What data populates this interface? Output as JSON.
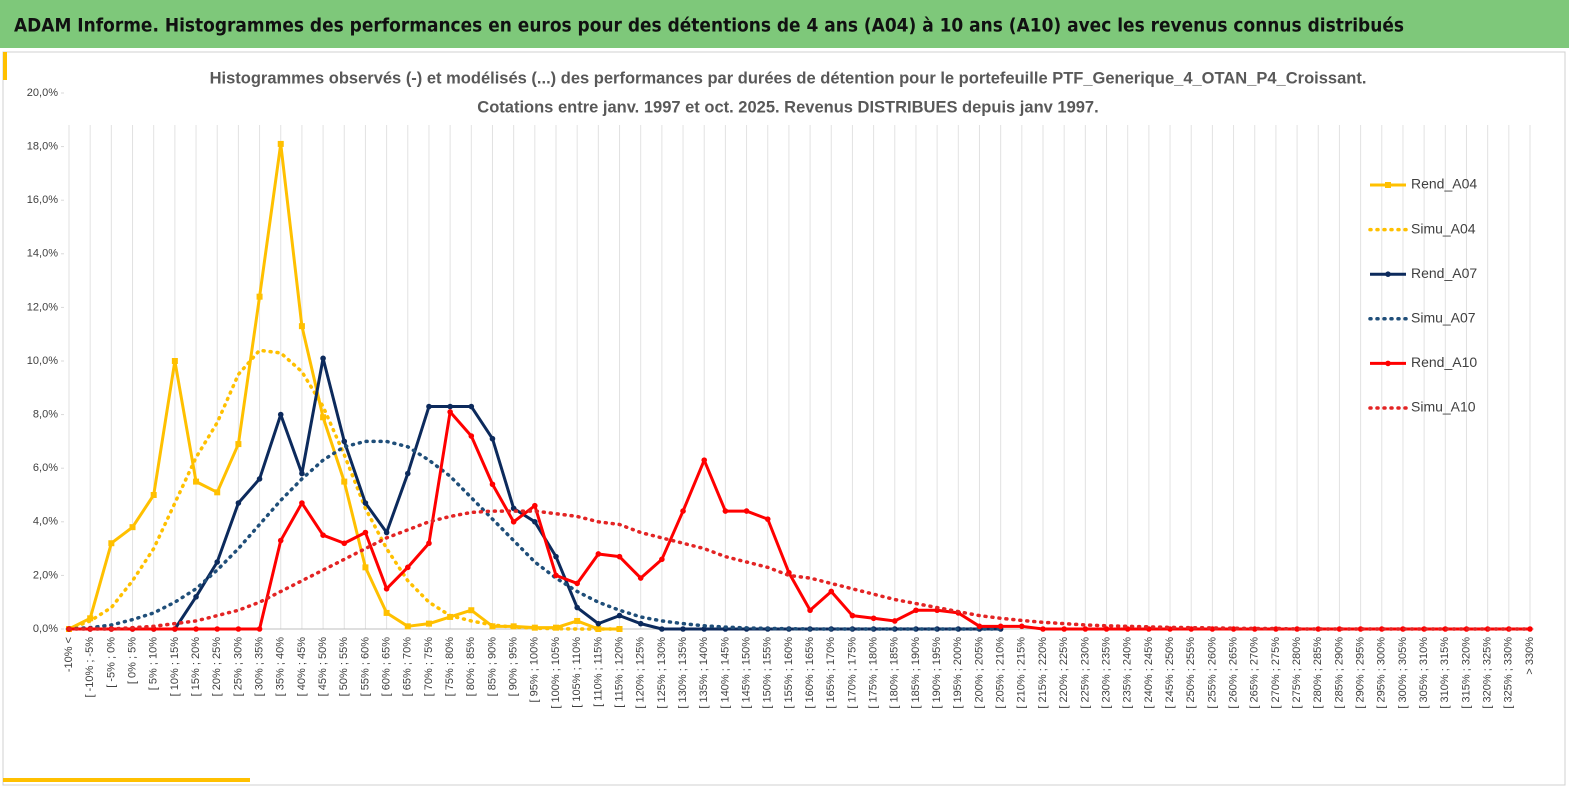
{
  "header": {
    "title": "ADAM Informe. Histogrammes des performances en euros pour des détentions de 4 ans (A04) à 10 ans (A10) avec les revenus connus distribués"
  },
  "chart_data": {
    "type": "line",
    "title": [
      "Histogrammes observés (-) et modélisés (...) des performances par durées de détention pour le portefeuille PTF_Generique_4_OTAN_P4_Croissant.",
      "Cotations entre janv. 1997 et oct. 2025. Revenus DISTRIBUES depuis janv 1997."
    ],
    "categories": [
      "-10% <",
      "[ -10% ; -5%",
      "[ -5% ; 0%",
      "[ 0% ; 5%",
      "[ 5% ; 10%",
      "[ 10% ; 15%",
      "[ 15% ; 20%",
      "[ 20% ; 25%",
      "[ 25% ; 30%",
      "[ 30% ; 35%",
      "[ 35% ; 40%",
      "[ 40% ; 45%",
      "[ 45% ; 50%",
      "[ 50% ; 55%",
      "[ 55% ; 60%",
      "[ 60% ; 65%",
      "[ 65% ; 70%",
      "[ 70% ; 75%",
      "[ 75% ; 80%",
      "[ 80% ; 85%",
      "[ 85% ; 90%",
      "[ 90% ; 95%",
      "[ 95% ; 100%",
      "[ 100% ; 105%",
      "[ 105% ; 110%",
      "[ 110% ; 115%",
      "[ 115% ; 120%",
      "[ 120% ; 125%",
      "[ 125% ; 130%",
      "[ 130% ; 135%",
      "[ 135% ; 140%",
      "[ 140% ; 145%",
      "[ 145% ; 150%",
      "[ 150% ; 155%",
      "[ 155% ; 160%",
      "[ 160% ; 165%",
      "[ 165% ; 170%",
      "[ 170% ; 175%",
      "[ 175% ; 180%",
      "[ 180% ; 185%",
      "[ 185% ; 190%",
      "[ 190% ; 195%",
      "[ 195% ; 200%",
      "[ 200% ; 205%",
      "[ 205% ; 210%",
      "[ 210% ; 215%",
      "[ 215% ; 220%",
      "[ 220% ; 225%",
      "[ 225% ; 230%",
      "[ 230% ; 235%",
      "[ 235% ; 240%",
      "[ 240% ; 245%",
      "[ 245% ; 250%",
      "[ 250% ; 255%",
      "[ 255% ; 260%",
      "[ 260% ; 265%",
      "[ 265% ; 270%",
      "[ 270% ; 275%",
      "[ 275% ; 280%",
      "[ 280% ; 285%",
      "[ 285% ; 290%",
      "[ 290% ; 295%",
      "[ 295% ; 300%",
      "[ 300% ; 305%",
      "[ 305% ; 310%",
      "[ 310% ; 315%",
      "[ 315% ; 320%",
      "[ 320% ; 325%",
      "[ 325% ; 330%",
      "> 330%"
    ],
    "series": [
      {
        "name": "Rend_A04",
        "color": "#ffc000",
        "style": "solid",
        "marker": "square",
        "values": [
          0,
          0.4,
          3.2,
          3.8,
          5.0,
          10.0,
          5.5,
          5.1,
          6.9,
          12.4,
          18.1,
          11.3,
          7.9,
          5.5,
          2.3,
          0.6,
          0.1,
          0.2,
          0.45,
          0.7,
          0.1,
          0.1,
          0.05,
          0.05,
          0.3,
          0,
          0,
          null,
          null,
          null,
          null,
          null,
          null,
          null,
          null,
          null,
          null,
          null,
          null,
          null,
          null,
          null,
          null,
          null,
          null,
          null,
          null,
          null,
          null,
          null,
          null,
          null,
          null,
          null,
          null,
          null,
          null,
          null,
          null,
          null,
          null,
          null,
          null,
          null,
          null,
          null,
          null,
          null,
          null,
          null
        ]
      },
      {
        "name": "Simu_A04",
        "color": "#ffc000",
        "style": "dotted",
        "marker": null,
        "values": [
          0,
          0.3,
          0.8,
          1.8,
          3.0,
          4.7,
          6.4,
          7.7,
          9.5,
          10.4,
          10.3,
          9.6,
          8.3,
          6.5,
          4.5,
          3.0,
          1.8,
          1.0,
          0.5,
          0.3,
          0.15,
          0.07,
          0.03,
          0.01,
          0,
          0,
          0,
          null,
          null,
          null,
          null,
          null,
          null,
          null,
          null,
          null,
          null,
          null,
          null,
          null,
          null,
          null,
          null,
          null,
          null,
          null,
          null,
          null,
          null,
          null,
          null,
          null,
          null,
          null,
          null,
          null,
          null,
          null,
          null,
          null,
          null,
          null,
          null,
          null,
          null,
          null,
          null,
          null,
          null,
          null
        ]
      },
      {
        "name": "Rend_A07",
        "color": "#0c2a5c",
        "style": "solid",
        "marker": "circle",
        "values": [
          0,
          0,
          0,
          0,
          0,
          0,
          1.2,
          2.5,
          4.7,
          5.6,
          8.0,
          5.8,
          10.1,
          7.0,
          4.7,
          3.6,
          5.8,
          8.3,
          8.3,
          8.3,
          7.1,
          4.5,
          4.0,
          2.7,
          0.8,
          0.2,
          0.5,
          0.2,
          0,
          0,
          0,
          0,
          0,
          0,
          0,
          0,
          0,
          0,
          0,
          0,
          0,
          0,
          0,
          0,
          0,
          null,
          null,
          null,
          null,
          null,
          null,
          null,
          null,
          null,
          null,
          null,
          null,
          null,
          null,
          null,
          null,
          null,
          null,
          null,
          null,
          null,
          null,
          null,
          null,
          null
        ]
      },
      {
        "name": "Simu_A07",
        "color": "#1f4e79",
        "style": "dotted",
        "marker": null,
        "values": [
          0,
          0.05,
          0.15,
          0.35,
          0.6,
          1.0,
          1.5,
          2.2,
          3.0,
          3.9,
          4.8,
          5.6,
          6.3,
          6.8,
          7.0,
          7.0,
          6.8,
          6.3,
          5.7,
          4.9,
          4.1,
          3.3,
          2.5,
          1.9,
          1.4,
          1.0,
          0.7,
          0.45,
          0.3,
          0.2,
          0.12,
          0.07,
          0.04,
          0.02,
          0.01,
          0,
          0,
          0,
          0,
          0,
          0,
          0,
          0,
          0,
          0,
          null,
          null,
          null,
          null,
          null,
          null,
          null,
          null,
          null,
          null,
          null,
          null,
          null,
          null,
          null,
          null,
          null,
          null,
          null,
          null,
          null,
          null,
          null,
          null,
          null
        ]
      },
      {
        "name": "Rend_A10",
        "color": "#ff0000",
        "style": "solid",
        "marker": "circle",
        "values": [
          0,
          0,
          0,
          0,
          0,
          0,
          0,
          0,
          0,
          0,
          3.3,
          4.7,
          3.5,
          3.2,
          3.6,
          1.5,
          2.3,
          3.2,
          8.1,
          7.2,
          5.4,
          4.0,
          4.6,
          2.0,
          1.7,
          2.8,
          2.7,
          1.9,
          2.6,
          4.4,
          6.3,
          4.4,
          4.4,
          4.1,
          2.1,
          0.7,
          1.4,
          0.5,
          0.4,
          0.3,
          0.7,
          0.7,
          0.6,
          0.1,
          0.1,
          0.1,
          0,
          0,
          0,
          0,
          0,
          0,
          0,
          0,
          0,
          0,
          0,
          0,
          0,
          0,
          0,
          0,
          0,
          0,
          0,
          0,
          0,
          0,
          0,
          0
        ]
      },
      {
        "name": "Simu_A10",
        "color": "#e32424",
        "style": "dotted",
        "marker": null,
        "values": [
          0,
          0,
          0,
          0.05,
          0.1,
          0.2,
          0.3,
          0.5,
          0.7,
          1.0,
          1.4,
          1.8,
          2.2,
          2.6,
          3.0,
          3.4,
          3.7,
          4.0,
          4.2,
          4.35,
          4.4,
          4.4,
          4.4,
          4.3,
          4.2,
          4.0,
          3.9,
          3.6,
          3.4,
          3.2,
          3.0,
          2.7,
          2.5,
          2.3,
          2.0,
          1.9,
          1.7,
          1.5,
          1.3,
          1.1,
          0.95,
          0.8,
          0.65,
          0.5,
          0.4,
          0.32,
          0.25,
          0.2,
          0.15,
          0.12,
          0.1,
          0.08,
          0.06,
          0.05,
          0.04,
          0.03,
          0.02,
          0.02,
          0,
          0,
          0,
          0,
          0,
          0,
          0,
          0,
          0,
          0,
          0,
          0
        ]
      }
    ],
    "ylim": [
      0,
      20
    ],
    "yticks": [
      {
        "value": 0,
        "label": "0,0%"
      },
      {
        "value": 2,
        "label": "2,0%"
      },
      {
        "value": 4,
        "label": "4,0%"
      },
      {
        "value": 6,
        "label": "6,0%"
      },
      {
        "value": 8,
        "label": "8,0%"
      },
      {
        "value": 10,
        "label": "10,0%"
      },
      {
        "value": 12,
        "label": "12,0%"
      },
      {
        "value": 14,
        "label": "14,0%"
      },
      {
        "value": 16,
        "label": "16,0%"
      },
      {
        "value": 18,
        "label": "18,0%"
      },
      {
        "value": 20,
        "label": "20,0%"
      }
    ],
    "grid": "x",
    "legend": "right"
  }
}
